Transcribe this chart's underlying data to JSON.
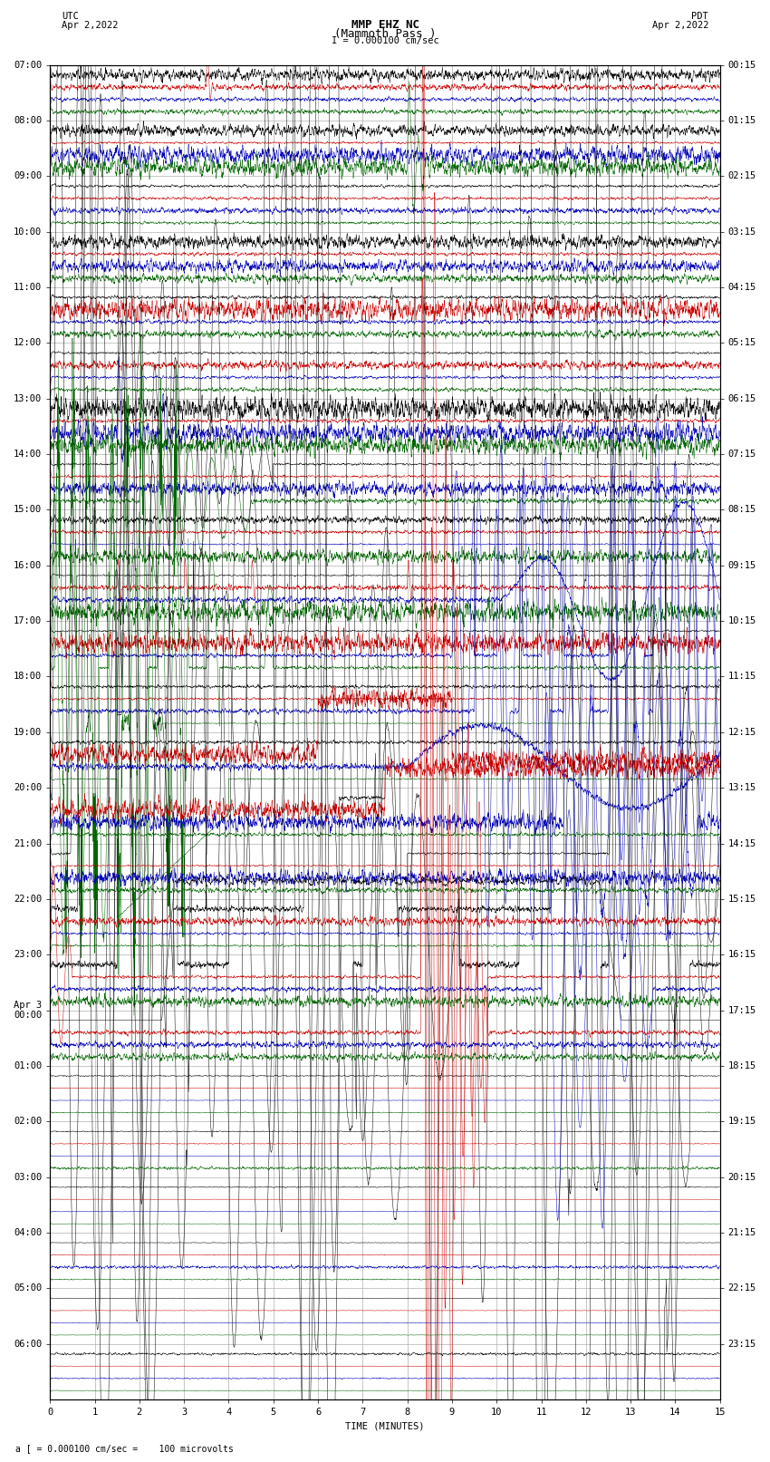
{
  "title_line1": "MMP EHZ NC",
  "title_line2": "(Mammoth Pass )",
  "scale_label": "I = 0.000100 cm/sec",
  "utc_label": "UTC",
  "utc_date": "Apr 2,2022",
  "pdt_label": "PDT",
  "pdt_date": "Apr 2,2022",
  "footer_note": "a [ = 0.000100 cm/sec =    100 microvolts",
  "xlabel": "TIME (MINUTES)",
  "left_times": [
    "07:00",
    "08:00",
    "09:00",
    "10:00",
    "11:00",
    "12:00",
    "13:00",
    "14:00",
    "15:00",
    "16:00",
    "17:00",
    "18:00",
    "19:00",
    "20:00",
    "21:00",
    "22:00",
    "23:00",
    "Apr 3\n00:00",
    "01:00",
    "02:00",
    "03:00",
    "04:00",
    "05:00",
    "06:00"
  ],
  "right_times": [
    "00:15",
    "01:15",
    "02:15",
    "03:15",
    "04:15",
    "05:15",
    "06:15",
    "07:15",
    "08:15",
    "09:15",
    "10:15",
    "11:15",
    "12:15",
    "13:15",
    "14:15",
    "15:15",
    "16:15",
    "17:15",
    "18:15",
    "19:15",
    "20:15",
    "21:15",
    "22:15",
    "23:15"
  ],
  "n_rows": 24,
  "bg_color": "#ffffff",
  "grid_color": "#b0b0b0",
  "colors": {
    "black": "#000000",
    "red": "#cc0000",
    "blue": "#0000bb",
    "green": "#006600"
  },
  "title_fontsize": 9,
  "label_fontsize": 7.5,
  "tick_fontsize": 7.5
}
